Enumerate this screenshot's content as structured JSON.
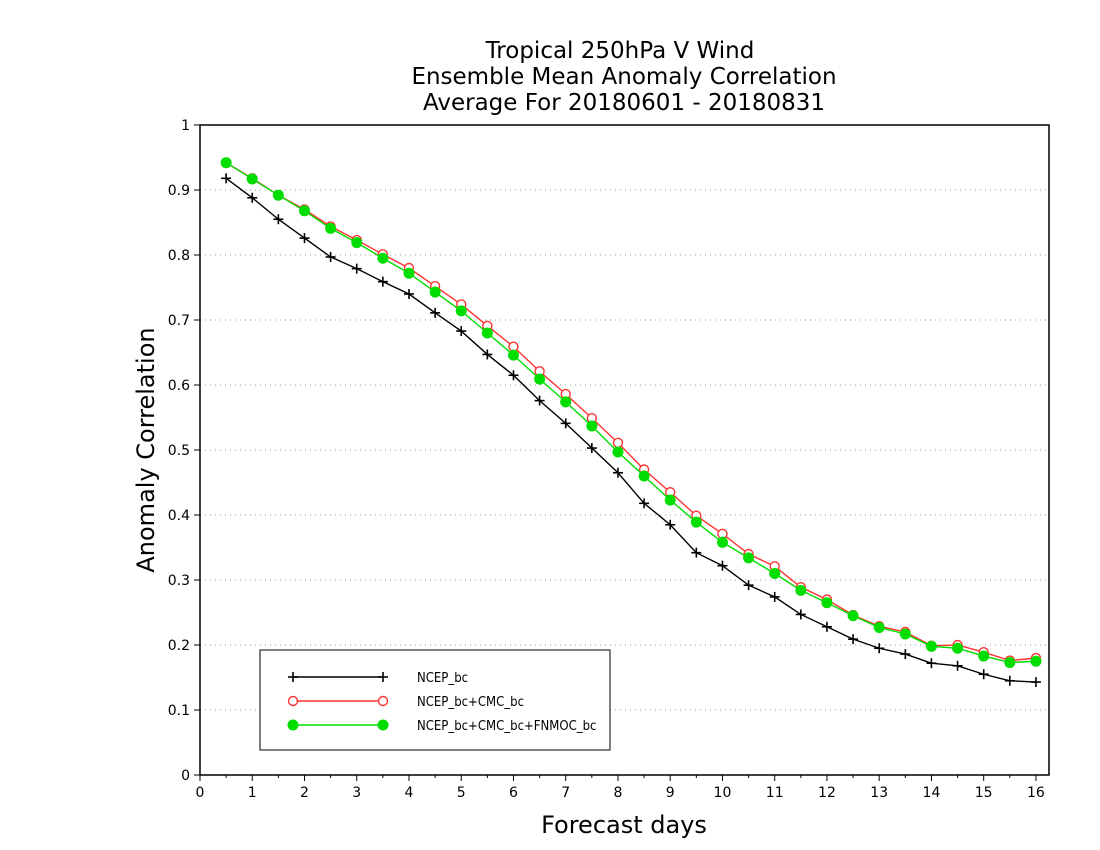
{
  "chart_data": {
    "type": "line",
    "title_lines": [
      "Tropical 250hPa V Wind",
      "Ensemble Mean Anomaly Correlation",
      "Average For 20180601 - 20180831"
    ],
    "xlabel": "Forecast days",
    "ylabel": "Anomaly Correlation",
    "xlim": [
      0,
      16.25
    ],
    "ylim": [
      0,
      1
    ],
    "x_ticks": [
      0,
      1,
      2,
      3,
      4,
      5,
      6,
      7,
      8,
      9,
      10,
      11,
      12,
      13,
      14,
      15,
      16
    ],
    "y_ticks": [
      0,
      0.1,
      0.2,
      0.3,
      0.4,
      0.5,
      0.6,
      0.7,
      0.8,
      0.9,
      1
    ],
    "y_tick_labels": [
      "0",
      "0.1",
      "0.2",
      "0.3",
      "0.4",
      "0.5",
      "0.6",
      "0.7",
      "0.8",
      "0.9",
      "1"
    ],
    "grid": "horizontal dotted",
    "legend_position": "bottom-left",
    "x": [
      0.5,
      1.0,
      1.5,
      2.0,
      2.5,
      3.0,
      3.5,
      4.0,
      4.5,
      5.0,
      5.5,
      6.0,
      6.5,
      7.0,
      7.5,
      8.0,
      8.5,
      9.0,
      9.5,
      10.0,
      10.5,
      11.0,
      11.5,
      12.0,
      12.5,
      13.0,
      13.5,
      14.0,
      14.5,
      15.0,
      15.5,
      16.0
    ],
    "series": [
      {
        "name": "NCEP_bc",
        "color": "#000000",
        "marker": "plus",
        "values": [
          0.918,
          0.888,
          0.855,
          0.826,
          0.797,
          0.779,
          0.759,
          0.74,
          0.711,
          0.683,
          0.647,
          0.615,
          0.576,
          0.541,
          0.503,
          0.465,
          0.418,
          0.385,
          0.342,
          0.322,
          0.292,
          0.274,
          0.247,
          0.228,
          0.209,
          0.195,
          0.186,
          0.172,
          0.168,
          0.155,
          0.145,
          0.143
        ]
      },
      {
        "name": "NCEP_bc+CMC_bc",
        "color": "#ff3333",
        "marker": "open-circle",
        "values": [
          0.942,
          0.918,
          0.892,
          0.87,
          0.844,
          0.823,
          0.801,
          0.78,
          0.752,
          0.724,
          0.691,
          0.659,
          0.621,
          0.586,
          0.549,
          0.511,
          0.47,
          0.435,
          0.399,
          0.371,
          0.34,
          0.321,
          0.289,
          0.27,
          0.246,
          0.229,
          0.22,
          0.199,
          0.2,
          0.189,
          0.176,
          0.18
        ]
      },
      {
        "name": "NCEP_bc+CMC_bc+FNMOC_bc",
        "color": "#00dd00",
        "marker": "filled-circle",
        "values": [
          0.942,
          0.917,
          0.892,
          0.868,
          0.841,
          0.819,
          0.795,
          0.772,
          0.743,
          0.714,
          0.68,
          0.646,
          0.609,
          0.574,
          0.537,
          0.497,
          0.46,
          0.423,
          0.389,
          0.358,
          0.334,
          0.31,
          0.284,
          0.265,
          0.245,
          0.227,
          0.217,
          0.198,
          0.195,
          0.183,
          0.173,
          0.175
        ]
      }
    ]
  }
}
